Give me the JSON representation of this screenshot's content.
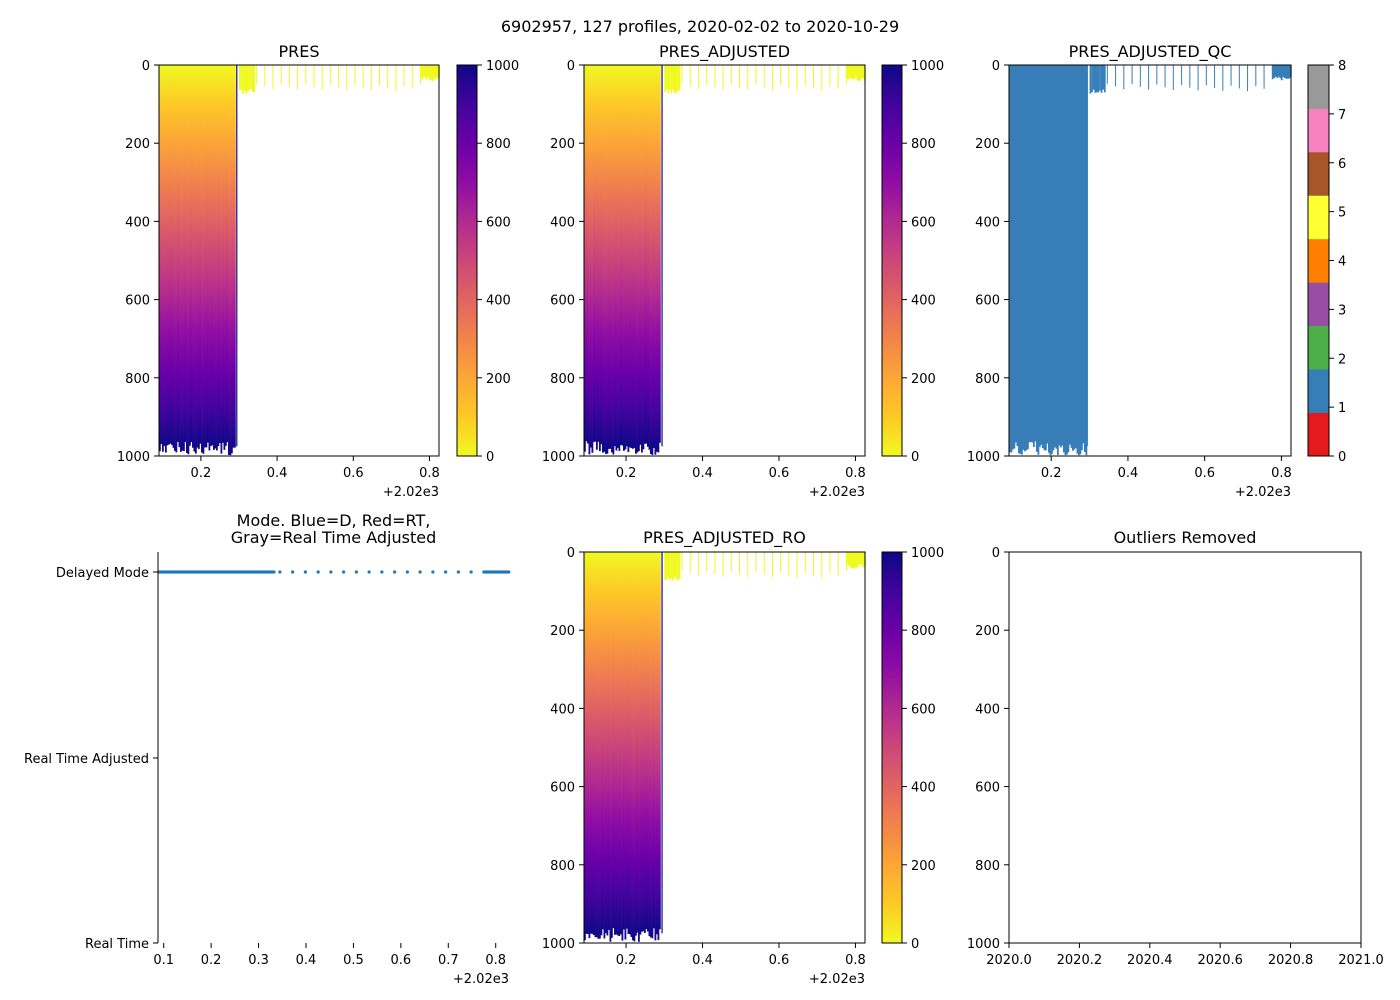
{
  "chart_data": {
    "suptitle": "6902957, 127 profiles, 2020-02-02 to 2020-10-29",
    "time_range": [
      2020.09,
      2020.825
    ],
    "profile_times_note": "dense profiles 2020.09-2020.29, sparse 2020.30-2020.77, dense 2020.775-2020.825",
    "panels": [
      {
        "id": "pres",
        "type": "heatmap",
        "title": "PRES",
        "xlim": [
          2020.09,
          2020.825
        ],
        "ylim": [
          1000,
          0
        ],
        "xticks": [
          "0.2",
          "0.4",
          "0.6",
          "0.8"
        ],
        "xtick_values": [
          2020.2,
          2020.4,
          2020.6,
          2020.8
        ],
        "xoffset": "+2.02e3",
        "yticks": [
          "0",
          "200",
          "400",
          "600",
          "800",
          "1000"
        ],
        "ytick_values": [
          0,
          200,
          400,
          600,
          800,
          1000
        ],
        "colormap": "plasma_r",
        "colorbar": {
          "ticks": [
            "0",
            "200",
            "400",
            "600",
            "800",
            "1000"
          ],
          "values": [
            0,
            200,
            400,
            600,
            800,
            1000
          ],
          "range": [
            0,
            1000
          ]
        }
      },
      {
        "id": "pres_adj",
        "type": "heatmap",
        "title": "PRES_ADJUSTED",
        "xlim": [
          2020.09,
          2020.825
        ],
        "ylim": [
          1000,
          0
        ],
        "xticks": [
          "0.2",
          "0.4",
          "0.6",
          "0.8"
        ],
        "xtick_values": [
          2020.2,
          2020.4,
          2020.6,
          2020.8
        ],
        "xoffset": "+2.02e3",
        "yticks": [
          "0",
          "200",
          "400",
          "600",
          "800",
          "1000"
        ],
        "ytick_values": [
          0,
          200,
          400,
          600,
          800,
          1000
        ],
        "colormap": "plasma_r",
        "colorbar": {
          "ticks": [
            "0",
            "200",
            "400",
            "600",
            "800",
            "1000"
          ],
          "values": [
            0,
            200,
            400,
            600,
            800,
            1000
          ],
          "range": [
            0,
            1000
          ]
        }
      },
      {
        "id": "pres_adj_qc",
        "type": "heatmap",
        "title": "PRES_ADJUSTED_QC",
        "xlim": [
          2020.09,
          2020.825
        ],
        "ylim": [
          1000,
          0
        ],
        "xticks": [
          "0.2",
          "0.4",
          "0.6",
          "0.8"
        ],
        "xtick_values": [
          2020.2,
          2020.4,
          2020.6,
          2020.8
        ],
        "xoffset": "+2.02e3",
        "yticks": [
          "0",
          "200",
          "400",
          "600",
          "800",
          "1000"
        ],
        "ytick_values": [
          0,
          200,
          400,
          600,
          800,
          1000
        ],
        "qc_value_shown": 1,
        "colorbar": {
          "ticks": [
            "0",
            "1",
            "2",
            "3",
            "4",
            "5",
            "6",
            "7",
            "8"
          ],
          "values": [
            0,
            1,
            2,
            3,
            4,
            5,
            6,
            7,
            8
          ],
          "range": [
            0,
            8
          ],
          "segment_colors": [
            "#e41a1c",
            "#377eb8",
            "#4daf4a",
            "#984ea3",
            "#ff7f00",
            "#ffff33",
            "#a65628",
            "#f781bf",
            "#999999"
          ]
        }
      },
      {
        "id": "mode",
        "type": "scatter",
        "title_line1": "Mode. Blue=D, Red=RT,",
        "title_line2": "Gray=Real Time Adjusted",
        "xlim": [
          2020.088,
          2020.828
        ],
        "xticks": [
          "0.1",
          "0.2",
          "0.3",
          "0.4",
          "0.5",
          "0.6",
          "0.7",
          "0.8"
        ],
        "xtick_values": [
          2020.1,
          2020.2,
          2020.3,
          2020.4,
          2020.5,
          2020.6,
          2020.7,
          2020.8
        ],
        "xoffset": "+2.02e3",
        "categories": [
          "Delayed Mode",
          "Real Time Adjusted",
          "Real Time"
        ],
        "series": [
          {
            "name": "Delayed Mode",
            "category": "Delayed Mode",
            "color": "#1f77b4"
          }
        ]
      },
      {
        "id": "pres_adj_ro",
        "type": "heatmap",
        "title": "PRES_ADJUSTED_RO",
        "xlim": [
          2020.09,
          2020.825
        ],
        "ylim": [
          1000,
          0
        ],
        "xticks": [
          "0.2",
          "0.4",
          "0.6",
          "0.8"
        ],
        "xtick_values": [
          2020.2,
          2020.4,
          2020.6,
          2020.8
        ],
        "xoffset": "+2.02e3",
        "yticks": [
          "0",
          "200",
          "400",
          "600",
          "800",
          "1000"
        ],
        "ytick_values": [
          0,
          200,
          400,
          600,
          800,
          1000
        ],
        "colormap": "plasma_r",
        "colorbar": {
          "ticks": [
            "0",
            "200",
            "400",
            "600",
            "800",
            "1000"
          ],
          "values": [
            0,
            200,
            400,
            600,
            800,
            1000
          ],
          "range": [
            0,
            1000
          ]
        }
      },
      {
        "id": "outliers",
        "type": "scatter",
        "title": "Outliers Removed",
        "xlim": [
          2020.0,
          2021.0
        ],
        "ylim": [
          1000,
          0
        ],
        "xticks": [
          "2020.0",
          "2020.2",
          "2020.4",
          "2020.6",
          "2020.8",
          "2021.0"
        ],
        "xtick_values": [
          2020.0,
          2020.2,
          2020.4,
          2020.6,
          2020.8,
          2021.0
        ],
        "yticks": [
          "0",
          "200",
          "400",
          "600",
          "800",
          "1000"
        ],
        "ytick_values": [
          0,
          200,
          400,
          600,
          800,
          1000
        ],
        "values": []
      }
    ]
  }
}
